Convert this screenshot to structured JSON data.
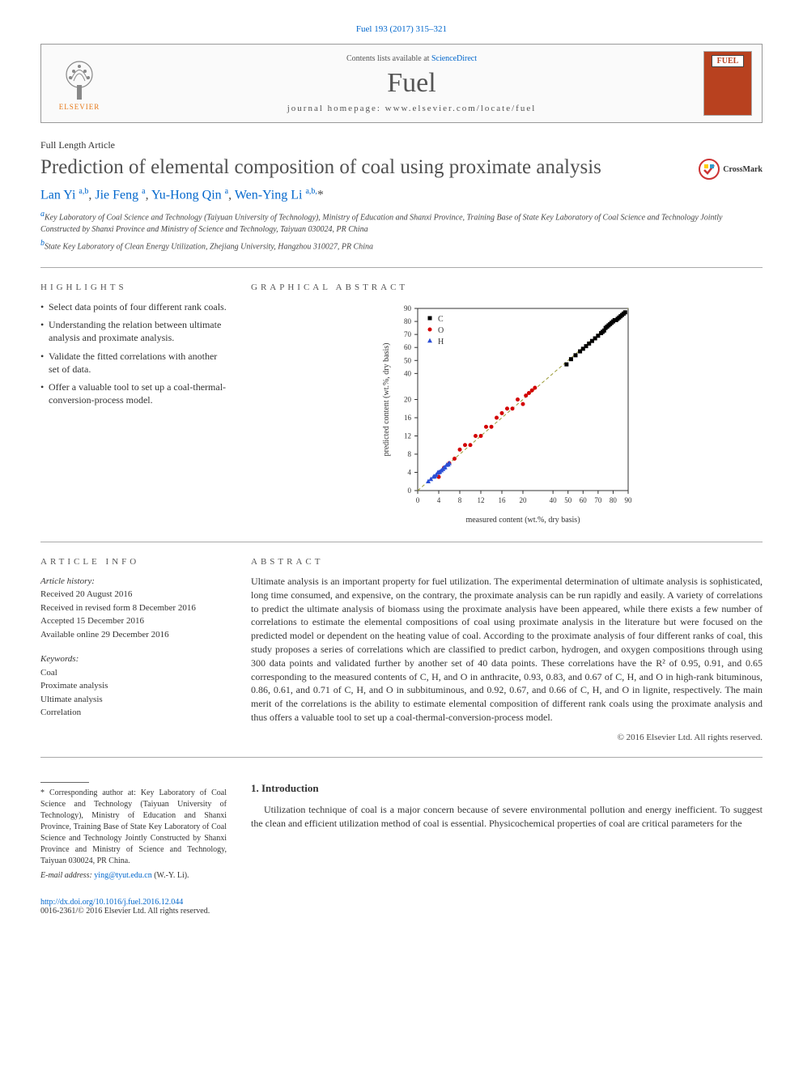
{
  "citation": "Fuel 193 (2017) 315–321",
  "header": {
    "contents_prefix": "Contents lists available at ",
    "contents_link": "ScienceDirect",
    "journal": "Fuel",
    "homepage_prefix": "journal homepage: ",
    "homepage_url": "www.elsevier.com/locate/fuel",
    "publisher": "ELSEVIER",
    "cover_label": "FUEL"
  },
  "article_type": "Full Length Article",
  "title": "Prediction of elemental composition of coal using proximate analysis",
  "crossmark": "CrossMark",
  "authors_html": "Lan Yi <sup>a,b</sup>, Jie Feng <sup>a</sup>, Yu-Hong Qin <sup>a</sup>, Wen-Ying Li <sup>a,b,</sup>*",
  "affiliations": [
    "a Key Laboratory of Coal Science and Technology (Taiyuan University of Technology), Ministry of Education and Shanxi Province, Training Base of State Key Laboratory of Coal Science and Technology Jointly Constructed by Shanxi Province and Ministry of Science and Technology, Taiyuan 030024, PR China",
    "b State Key Laboratory of Clean Energy Utilization, Zhejiang University, Hangzhou 310027, PR China"
  ],
  "highlights_heading": "HIGHLIGHTS",
  "highlights": [
    "Select data points of four different rank coals.",
    "Understanding the relation between ultimate analysis and proximate analysis.",
    "Validate the fitted correlations with another set of data.",
    "Offer a valuable tool to set up a coal-thermal-conversion-process model."
  ],
  "graphical_heading": "GRAPHICAL ABSTRACT",
  "chart": {
    "type": "scatter",
    "xlabel": "measured content (wt.%, dry basis)",
    "ylabel": "predicted content (wt.%, dry basis)",
    "label_fontsize": 10,
    "xlim": [
      0,
      90
    ],
    "ylim": [
      0,
      90
    ],
    "xticks": [
      0,
      4,
      8,
      12,
      16,
      20,
      40,
      50,
      60,
      70,
      80,
      90
    ],
    "yticks": [
      0,
      4,
      8,
      12,
      16,
      20,
      40,
      50,
      60,
      70,
      80,
      90
    ],
    "tick_fontsize": 9,
    "background_color": "#ffffff",
    "border_color": "#333333",
    "grid": false,
    "diag_line": {
      "color": "#999933",
      "dash": "4,3",
      "width": 1
    },
    "legend": {
      "position": "top-left-inside"
    },
    "series": [
      {
        "label": "C",
        "marker": "square",
        "color": "#000000",
        "size": 5,
        "points": [
          [
            49,
            47
          ],
          [
            52,
            51
          ],
          [
            55,
            54
          ],
          [
            58,
            57
          ],
          [
            60,
            59
          ],
          [
            62,
            61
          ],
          [
            64,
            63
          ],
          [
            66,
            65
          ],
          [
            68,
            67
          ],
          [
            70,
            69
          ],
          [
            72,
            71
          ],
          [
            73,
            72
          ],
          [
            74,
            73
          ],
          [
            75,
            75
          ],
          [
            76,
            76
          ],
          [
            77,
            77
          ],
          [
            78,
            78
          ],
          [
            79,
            79
          ],
          [
            80,
            80
          ],
          [
            81,
            81
          ],
          [
            82,
            81
          ],
          [
            83,
            82
          ],
          [
            84,
            83
          ],
          [
            85,
            84
          ],
          [
            86,
            85
          ],
          [
            87,
            86
          ],
          [
            88,
            87
          ]
        ]
      },
      {
        "label": "O",
        "marker": "circle",
        "color": "#d30000",
        "size": 5,
        "points": [
          [
            4,
            3
          ],
          [
            5,
            5
          ],
          [
            6,
            6
          ],
          [
            7,
            7
          ],
          [
            8,
            9
          ],
          [
            9,
            10
          ],
          [
            10,
            10
          ],
          [
            11,
            12
          ],
          [
            12,
            12
          ],
          [
            13,
            14
          ],
          [
            14,
            14
          ],
          [
            15,
            16
          ],
          [
            16,
            17
          ],
          [
            17,
            18
          ],
          [
            18,
            18
          ],
          [
            19,
            20
          ],
          [
            20,
            19
          ],
          [
            22,
            23
          ],
          [
            24,
            25
          ],
          [
            26,
            27
          ],
          [
            28,
            29
          ]
        ]
      },
      {
        "label": "H",
        "marker": "triangle",
        "color": "#2b4fd6",
        "size": 5,
        "points": [
          [
            2,
            2
          ],
          [
            2.5,
            2.5
          ],
          [
            3,
            3
          ],
          [
            3.2,
            3.1
          ],
          [
            3.5,
            3.4
          ],
          [
            3.8,
            3.9
          ],
          [
            4,
            4
          ],
          [
            4.2,
            4.1
          ],
          [
            4.5,
            4.4
          ],
          [
            4.8,
            4.7
          ],
          [
            5,
            5
          ],
          [
            5.2,
            5.1
          ],
          [
            5.5,
            5.6
          ],
          [
            5.8,
            5.7
          ],
          [
            6,
            6
          ]
        ]
      }
    ]
  },
  "article_info_heading": "ARTICLE INFO",
  "article_info": {
    "history_label": "Article history:",
    "history": [
      "Received 20 August 2016",
      "Received in revised form 8 December 2016",
      "Accepted 15 December 2016",
      "Available online 29 December 2016"
    ],
    "keywords_label": "Keywords:",
    "keywords": [
      "Coal",
      "Proximate analysis",
      "Ultimate analysis",
      "Correlation"
    ]
  },
  "abstract_heading": "ABSTRACT",
  "abstract": "Ultimate analysis is an important property for fuel utilization. The experimental determination of ultimate analysis is sophisticated, long time consumed, and expensive, on the contrary, the proximate analysis can be run rapidly and easily. A variety of correlations to predict the ultimate analysis of biomass using the proximate analysis have been appeared, while there exists a few number of correlations to estimate the elemental compositions of coal using proximate analysis in the literature but were focused on the predicted model or dependent on the heating value of coal. According to the proximate analysis of four different ranks of coal, this study proposes a series of correlations which are classified to predict carbon, hydrogen, and oxygen compositions through using 300 data points and validated further by another set of 40 data points. These correlations have the R² of 0.95, 0.91, and 0.65 corresponding to the measured contents of C, H, and O in anthracite, 0.93, 0.83, and 0.67 of C, H, and O in high-rank bituminous, 0.86, 0.61, and 0.71 of C, H, and O in subbituminous, and 0.92, 0.67, and 0.66 of C, H, and O in lignite, respectively. The main merit of the correlations is the ability to estimate elemental composition of different rank coals using the proximate analysis and thus offers a valuable tool to set up a coal-thermal-conversion-process model.",
  "copyright_line": "© 2016 Elsevier Ltd. All rights reserved.",
  "introduction": {
    "heading": "1. Introduction",
    "text": "Utilization technique of coal is a major concern because of severe environmental pollution and energy inefficient. To suggest the clean and efficient utilization method of coal is essential. Physicochemical properties of coal are critical parameters for the"
  },
  "footnote": {
    "text": "* Corresponding author at: Key Laboratory of Coal Science and Technology (Taiyuan University of Technology), Ministry of Education and Shanxi Province, Training Base of State Key Laboratory of Coal Science and Technology Jointly Constructed by Shanxi Province and Ministry of Science and Technology, Taiyuan 030024, PR China.",
    "email_label": "E-mail address:",
    "email": "ying@tyut.edu.cn",
    "email_author": "(W.-Y. Li).",
    "doi": "http://dx.doi.org/10.1016/j.fuel.2016.12.044",
    "issn_copyright": "0016-2361/© 2016 Elsevier Ltd. All rights reserved."
  }
}
